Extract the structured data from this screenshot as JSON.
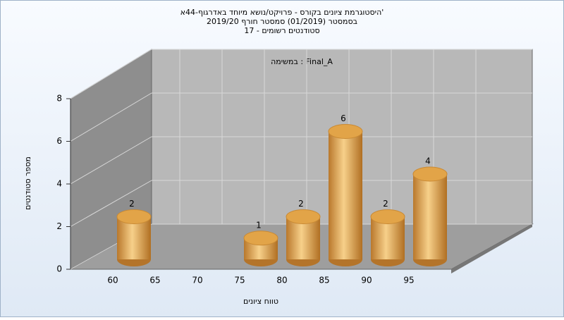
{
  "chart_data": {
    "type": "bar3d",
    "title": "היסטוגרמת ציונים בקורס - פרויקט/נושא מיוחד באדרגוף-44א'",
    "subtitle": "בסמסטר  (01/2019)  סמסטר חורף 2019/20",
    "subtitle2": "סטודנטים רשומים - 17",
    "annotation": "במשימה : Final_A",
    "x_label": "טווח ציונים",
    "y_label": "מספר סטודנטים",
    "categories": [
      "60",
      "65",
      "70",
      "75",
      "80",
      "85",
      "90",
      "95"
    ],
    "values": [
      2,
      null,
      null,
      1,
      2,
      6,
      2,
      4
    ],
    "color": "#e2a448",
    "ylim": [
      0,
      8
    ],
    "yticks": [
      0,
      2,
      4,
      6,
      8
    ],
    "grid": true
  }
}
